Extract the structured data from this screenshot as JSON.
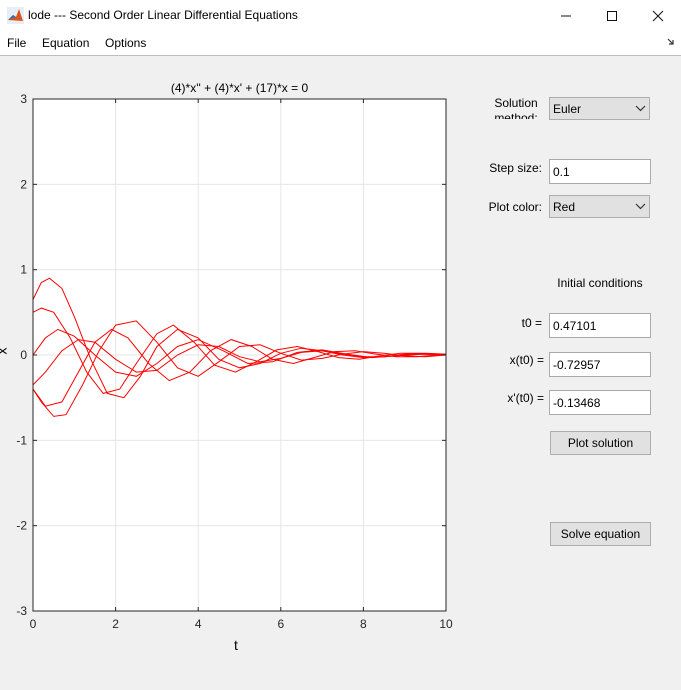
{
  "window": {
    "title": "lode --- Second Order Linear Differential Equations"
  },
  "menu": [
    "File",
    "Equation",
    "Options"
  ],
  "plot": {
    "title": "(4)*x'' + (4)*x' + (17)*x = 0",
    "xlabel": "t",
    "ylabel": "x",
    "xticks": [
      "0",
      "2",
      "4",
      "6",
      "8",
      "10"
    ],
    "yticks": [
      "3",
      "2",
      "1",
      "0",
      "-1",
      "-2",
      "-3"
    ],
    "line_color": "#ff0000"
  },
  "chart_data": {
    "type": "line",
    "title": "(4)*x'' + (4)*x' + (17)*x = 0",
    "xlabel": "t",
    "ylabel": "x",
    "xlim": [
      0,
      10
    ],
    "ylim": [
      -3,
      3
    ],
    "grid": true,
    "xticks": [
      0,
      2,
      4,
      6,
      8,
      10
    ],
    "yticks": [
      -3,
      -2,
      -1,
      0,
      1,
      2,
      3
    ],
    "series": [
      {
        "color": "#ff0000",
        "x": [
          0,
          0.2,
          0.4,
          0.7,
          1.0,
          1.4,
          1.8,
          2.2,
          2.6,
          3.0,
          3.5,
          4.0,
          4.5,
          5.0,
          5.5,
          6.0,
          6.5,
          7.0,
          7.5,
          8.0,
          8.5,
          9.0,
          9.5,
          10
        ],
        "y": [
          0.65,
          0.85,
          0.9,
          0.78,
          0.45,
          -0.05,
          -0.45,
          -0.5,
          -0.25,
          0.1,
          0.3,
          0.2,
          -0.05,
          -0.15,
          -0.1,
          0.02,
          0.08,
          0.05,
          0.0,
          -0.03,
          -0.02,
          0.01,
          0.02,
          0.01
        ]
      },
      {
        "color": "#ff0000",
        "x": [
          0,
          0.2,
          0.5,
          0.9,
          1.3,
          1.7,
          2.1,
          2.5,
          3.0,
          3.4,
          3.9,
          4.4,
          4.9,
          5.4,
          5.9,
          6.4,
          6.9,
          7.4,
          7.9,
          8.4,
          8.9,
          9.4,
          10
        ],
        "y": [
          0.5,
          0.55,
          0.5,
          0.2,
          -0.2,
          -0.45,
          -0.4,
          -0.1,
          0.25,
          0.35,
          0.15,
          -0.12,
          -0.2,
          -0.08,
          0.06,
          0.1,
          0.04,
          -0.03,
          -0.05,
          -0.01,
          0.02,
          0.02,
          0.0
        ]
      },
      {
        "color": "#ff0000",
        "x": [
          0,
          0.3,
          0.6,
          1.0,
          1.5,
          2.0,
          2.5,
          3.0,
          3.5,
          4.0,
          4.6,
          5.2,
          5.8,
          6.4,
          7.0,
          7.6,
          8.2,
          8.8,
          9.4,
          10
        ],
        "y": [
          0.0,
          0.2,
          0.3,
          0.22,
          0.0,
          -0.2,
          -0.25,
          -0.1,
          0.1,
          0.18,
          0.05,
          -0.1,
          -0.08,
          0.03,
          0.06,
          0.01,
          -0.03,
          -0.01,
          0.01,
          0.0
        ]
      },
      {
        "color": "#ff0000",
        "x": [
          0,
          0.2,
          0.5,
          0.8,
          1.2,
          1.6,
          2.0,
          2.5,
          3.0,
          3.5,
          4.0,
          4.5,
          5.0,
          5.5,
          6.0,
          6.5,
          7.0,
          7.5,
          8.0,
          8.5,
          9.0,
          9.5,
          10
        ],
        "y": [
          -0.4,
          -0.55,
          -0.72,
          -0.7,
          -0.35,
          0.05,
          0.35,
          0.4,
          0.15,
          -0.15,
          -0.25,
          -0.08,
          0.1,
          0.12,
          0.02,
          -0.06,
          -0.04,
          0.01,
          0.04,
          0.02,
          -0.01,
          -0.02,
          0.0
        ]
      },
      {
        "color": "#ff0000",
        "x": [
          0,
          0.3,
          0.7,
          1.1,
          1.5,
          1.9,
          2.3,
          2.8,
          3.3,
          3.8,
          4.3,
          4.8,
          5.3,
          5.8,
          6.3,
          6.8,
          7.3,
          7.8,
          8.3,
          8.8,
          9.3,
          9.8,
          10
        ],
        "y": [
          -0.4,
          -0.6,
          -0.55,
          -0.2,
          0.15,
          0.3,
          0.2,
          -0.1,
          -0.3,
          -0.2,
          0.05,
          0.18,
          0.1,
          -0.05,
          -0.1,
          -0.03,
          0.04,
          0.05,
          0.01,
          -0.02,
          -0.02,
          0.0,
          0.0
        ]
      },
      {
        "color": "#ff0000",
        "x": [
          0,
          0.3,
          0.7,
          1.1,
          1.5,
          2.0,
          2.5,
          3.0,
          3.5,
          4.0,
          4.5,
          5.0,
          5.5,
          6.0,
          6.5,
          7.0,
          7.5,
          8.0,
          8.5,
          9.0,
          9.5,
          10
        ],
        "y": [
          -0.35,
          -0.2,
          0.05,
          0.18,
          0.15,
          -0.05,
          -0.2,
          -0.18,
          0.0,
          0.12,
          0.1,
          -0.02,
          -0.08,
          -0.04,
          0.03,
          0.05,
          0.01,
          -0.02,
          -0.02,
          0.0,
          0.01,
          0.0
        ]
      }
    ]
  },
  "controls": {
    "solution_method_label_1": "Solution",
    "solution_method_label_2": "method:",
    "solution_method_value": "Euler",
    "step_size_label": "Step size:",
    "step_size_value": "0.1",
    "plot_color_label": "Plot color:",
    "plot_color_value": "Red",
    "initial_conditions_label": "Initial conditions",
    "t0_label": "t0 =",
    "t0_value": "0.47101",
    "x0_label": "x(t0) =",
    "x0_value": "-0.72957",
    "dx0_label": "x'(t0) =",
    "dx0_value": "-0.13468",
    "plot_solution_button": "Plot solution",
    "solve_equation_button": "Solve equation"
  }
}
